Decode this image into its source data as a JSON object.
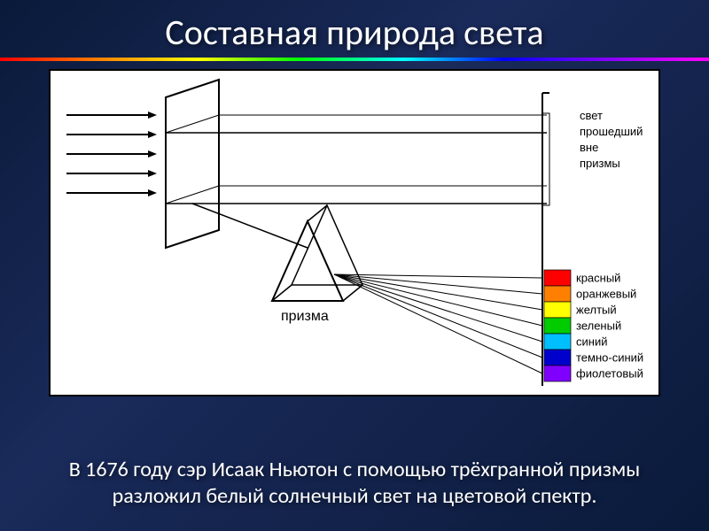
{
  "title": "Составная природа света",
  "caption": "В 1676 году сэр Исаак Ньютон с помощью трёхгранной призмы разложил белый солнечный свет на цветовой спектр.",
  "diagram": {
    "type": "infographic",
    "background_color": "#ffffff",
    "stroke_color": "#000000",
    "prism_label": "призма",
    "unrefracted_label_lines": [
      "свет",
      "прошедший",
      "вне",
      "призмы"
    ],
    "spectrum": [
      {
        "label": "красный",
        "color": "#ff0000"
      },
      {
        "label": "оранжевый",
        "color": "#ff8000"
      },
      {
        "label": "желтый",
        "color": "#ffff00"
      },
      {
        "label": "зеленый",
        "color": "#00cc00"
      },
      {
        "label": "синий",
        "color": "#00bfff"
      },
      {
        "label": "темно-синий",
        "color": "#0000cc"
      },
      {
        "label": "фиолетовый",
        "color": "#8000ff"
      }
    ],
    "label_fontsize": 13,
    "prism_label_fontsize": 16
  },
  "slide": {
    "bg_gradient": [
      "#0a1a3a",
      "#1a2a5a",
      "#0a1a3a"
    ],
    "title_color": "#ffffff",
    "title_fontsize": 40,
    "caption_fontsize": 24,
    "caption_color": "#ffffff",
    "spectrum_bar_colors": [
      "#ff0000",
      "#ff8000",
      "#ffff00",
      "#00ff00",
      "#00ffff",
      "#0000ff",
      "#8000ff",
      "#ff00ff"
    ]
  }
}
